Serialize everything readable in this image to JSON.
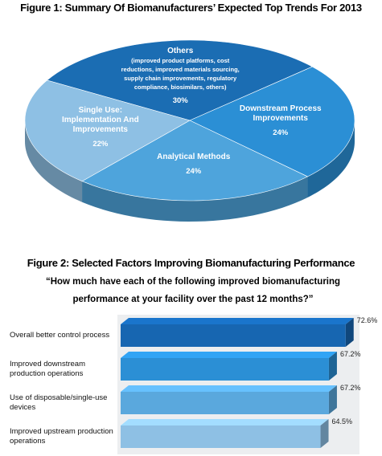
{
  "chart_data": [
    {
      "type": "pie",
      "title": "Figure 1: Summary Of Biomanufacturers’ Expected Top Trends For 2013",
      "categories": [
        "Others",
        "Downstream Process Improvements",
        "Analytical Methods",
        "Single Use: Implementation And Improvements"
      ],
      "category_notes": [
        "(improved product platforms, cost reductions, improved materials sourcing, supply chain improvements, regulatory compliance, biosimilars, others)",
        null,
        null,
        null
      ],
      "values": [
        30,
        24,
        24,
        22
      ],
      "value_labels": [
        "30%",
        "24%",
        "24%",
        "22%"
      ],
      "colors": [
        "#1b6db3",
        "#2b8fd5",
        "#4ea4dc",
        "#8ec0e4"
      ]
    },
    {
      "type": "hbar",
      "title": "Figure 2: Selected Factors Improving Biomanufacturing Performance",
      "subtitle": "“How much have each of the following improved biomanufacturing performance at your facility over the past 12 months?”",
      "categories": [
        "Overall better control process",
        "Improved downstream production operations",
        "Use of disposable/single-use devices",
        "Improved upstream production operations"
      ],
      "values": [
        72.6,
        67.2,
        67.2,
        64.5
      ],
      "value_labels": [
        "72.6%",
        "67.2%",
        "67.2%",
        "64.5%"
      ],
      "colors": [
        "#1766b1",
        "#2b8fd5",
        "#5aa8dd",
        "#8ec0e4"
      ],
      "xlim": [
        0,
        75
      ]
    }
  ]
}
